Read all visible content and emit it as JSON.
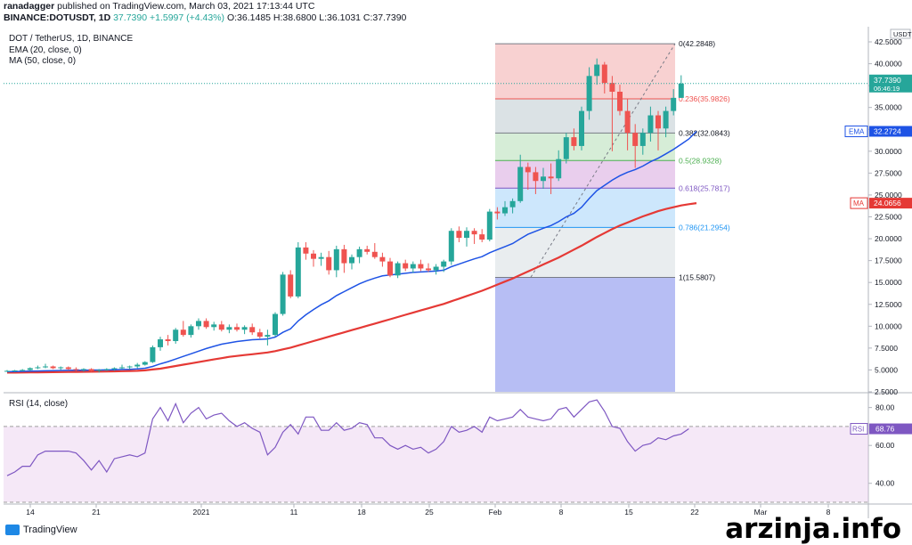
{
  "header": {
    "user": "ranadagger",
    "published": " published on TradingView.com, March 03, 2021 17:13:44 UTC",
    "symbol": "BINANCE:DOTUSDT, 1D",
    "price": "37.7390",
    "change": "+1.5997 (+4.43%)",
    "ohlc": "O:36.1485 H:38.6800 L:36.1031 C:37.7390"
  },
  "legend": {
    "pair": "DOT / TetherUS, 1D, BINANCE",
    "ema": "EMA (20, close, 0)",
    "ma": "MA (50, close, 0)",
    "rsi": "RSI (14, close)"
  },
  "branding": {
    "platform": "TradingView",
    "watermark": "arzinja.info"
  },
  "colors": {
    "up": "#26a69a",
    "down": "#ef5350",
    "ema": "#1e53e5",
    "ma": "#e53935",
    "rsi": "#7e57c2",
    "bg": "#ffffff"
  },
  "chart_data": [
    {
      "type": "candlestick",
      "title": "DOT / TetherUS, 1D, BINANCE",
      "currency": "USDT",
      "y_ticks": [
        "42.5000",
        "40.0000",
        "37.5000",
        "35.0000",
        "32.5000",
        "30.0000",
        "27.5000",
        "25.0000",
        "22.5000",
        "20.0000",
        "17.5000",
        "15.0000",
        "12.5000",
        "10.0000",
        "7.5000",
        "5.0000",
        "2.5000"
      ],
      "ylim": [
        2.5,
        42.5
      ],
      "x_ticks": [
        "14",
        "21",
        "2021",
        "11",
        "18",
        "25",
        "Feb",
        "8",
        "15",
        "22",
        "Mar",
        "8"
      ],
      "last_price_label": "37.7390",
      "countdown_label": "06:46:19",
      "ema_label": "EMA",
      "ema_value": "32.2724",
      "ma_label": "MA",
      "ma_value": "24.0656",
      "candles": [
        [
          4.9,
          5.0,
          4.8,
          4.9
        ],
        [
          4.9,
          5.0,
          4.8,
          4.95
        ],
        [
          4.95,
          5.1,
          4.85,
          5.0
        ],
        [
          5.0,
          5.3,
          4.9,
          5.2
        ],
        [
          5.2,
          5.5,
          5.1,
          5.3
        ],
        [
          5.3,
          5.7,
          5.2,
          5.4
        ],
        [
          5.4,
          5.5,
          5.1,
          5.2
        ],
        [
          5.2,
          5.4,
          5.0,
          5.3
        ],
        [
          5.3,
          5.4,
          5.0,
          5.1
        ],
        [
          5.1,
          5.3,
          4.9,
          5.0
        ],
        [
          5.0,
          5.2,
          4.8,
          5.1
        ],
        [
          5.1,
          5.2,
          4.8,
          4.9
        ],
        [
          4.9,
          5.1,
          4.7,
          5.0
        ],
        [
          5.0,
          5.2,
          4.9,
          5.1
        ],
        [
          5.1,
          5.3,
          4.9,
          5.2
        ],
        [
          5.2,
          5.6,
          5.1,
          5.3
        ],
        [
          5.3,
          5.5,
          5.1,
          5.4
        ],
        [
          5.4,
          5.8,
          5.2,
          5.6
        ],
        [
          5.6,
          6.0,
          5.5,
          5.9
        ],
        [
          5.9,
          7.8,
          5.8,
          7.6
        ],
        [
          7.6,
          8.8,
          7.2,
          8.5
        ],
        [
          8.5,
          9.0,
          7.8,
          8.3
        ],
        [
          8.3,
          9.8,
          8.0,
          9.6
        ],
        [
          9.6,
          10.6,
          8.8,
          9.0
        ],
        [
          9.0,
          10.2,
          8.7,
          10.0
        ],
        [
          10.0,
          10.9,
          9.6,
          10.6
        ],
        [
          10.6,
          10.9,
          9.7,
          9.9
        ],
        [
          9.9,
          10.5,
          9.5,
          10.2
        ],
        [
          10.2,
          10.6,
          9.4,
          9.6
        ],
        [
          9.6,
          10.2,
          9.2,
          9.9
        ],
        [
          9.9,
          10.3,
          9.4,
          9.6
        ],
        [
          9.6,
          10.1,
          9.1,
          9.9
        ],
        [
          9.9,
          10.3,
          9.0,
          9.3
        ],
        [
          9.3,
          9.7,
          8.6,
          8.8
        ],
        [
          8.8,
          9.6,
          7.8,
          9.0
        ],
        [
          9.0,
          11.6,
          8.8,
          11.4
        ],
        [
          11.4,
          16.2,
          11.2,
          15.9
        ],
        [
          15.9,
          16.4,
          13.2,
          13.4
        ],
        [
          13.4,
          19.6,
          13.2,
          19.0
        ],
        [
          19.0,
          19.6,
          17.6,
          18.3
        ],
        [
          18.3,
          18.7,
          16.8,
          17.7
        ],
        [
          17.7,
          18.4,
          16.9,
          17.9
        ],
        [
          17.9,
          18.6,
          15.9,
          16.4
        ],
        [
          16.4,
          19.2,
          15.6,
          18.8
        ],
        [
          18.8,
          19.3,
          16.1,
          17.2
        ],
        [
          17.2,
          18.2,
          16.5,
          17.9
        ],
        [
          17.9,
          19.1,
          17.2,
          18.8
        ],
        [
          18.8,
          19.2,
          18.2,
          18.5
        ],
        [
          18.5,
          19.5,
          17.7,
          17.9
        ],
        [
          17.9,
          18.4,
          16.8,
          17.4
        ],
        [
          17.4,
          17.8,
          15.6,
          15.8
        ],
        [
          15.8,
          17.4,
          15.5,
          17.2
        ],
        [
          17.2,
          17.6,
          16.3,
          16.6
        ],
        [
          16.6,
          17.4,
          16.1,
          17.1
        ],
        [
          17.1,
          17.6,
          16.3,
          16.6
        ],
        [
          16.6,
          17.2,
          16.2,
          16.4
        ],
        [
          16.4,
          17.1,
          15.9,
          16.8
        ],
        [
          16.8,
          17.6,
          16.2,
          17.4
        ],
        [
          17.4,
          21.2,
          17.0,
          20.9
        ],
        [
          20.9,
          21.4,
          19.6,
          20.1
        ],
        [
          20.1,
          21.3,
          19.1,
          20.9
        ],
        [
          20.9,
          21.2,
          19.4,
          20.5
        ],
        [
          20.5,
          21.1,
          19.6,
          19.9
        ],
        [
          19.9,
          23.4,
          19.7,
          23.1
        ],
        [
          23.1,
          23.6,
          22.2,
          22.9
        ],
        [
          22.9,
          24.3,
          22.6,
          23.6
        ],
        [
          23.6,
          24.6,
          22.9,
          24.3
        ],
        [
          24.3,
          29.6,
          24.1,
          28.2
        ],
        [
          28.2,
          28.7,
          25.6,
          27.6
        ],
        [
          27.6,
          28.2,
          25.1,
          26.6
        ],
        [
          26.6,
          28.1,
          25.7,
          27.1
        ],
        [
          27.1,
          28.6,
          25.1,
          26.9
        ],
        [
          26.9,
          30.1,
          26.6,
          29.1
        ],
        [
          29.1,
          32.1,
          28.6,
          31.6
        ],
        [
          31.6,
          32.6,
          30.1,
          30.6
        ],
        [
          30.6,
          35.1,
          30.1,
          34.6
        ],
        [
          34.6,
          39.6,
          33.6,
          38.6
        ],
        [
          38.6,
          40.6,
          37.6,
          39.9
        ],
        [
          39.9,
          40.2,
          36.6,
          37.8
        ],
        [
          37.8,
          38.6,
          30.0,
          36.8
        ],
        [
          36.8,
          37.6,
          34.1,
          34.6
        ],
        [
          34.6,
          36.0,
          30.1,
          32.1
        ],
        [
          32.1,
          33.1,
          28.1,
          30.6
        ],
        [
          30.6,
          32.6,
          29.6,
          32.1
        ],
        [
          32.1,
          35.1,
          31.1,
          34.1
        ],
        [
          34.1,
          34.6,
          30.1,
          32.6
        ],
        [
          32.6,
          35.1,
          31.6,
          34.6
        ],
        [
          34.6,
          37.1,
          34.1,
          36.1
        ],
        [
          36.1,
          38.68,
          36.1031,
          37.739
        ]
      ],
      "ema20": [
        4.8,
        4.82,
        4.84,
        4.86,
        4.88,
        4.9,
        4.92,
        4.94,
        4.95,
        4.96,
        4.97,
        4.98,
        4.99,
        5.0,
        5.02,
        5.05,
        5.08,
        5.12,
        5.2,
        5.4,
        5.7,
        5.95,
        6.25,
        6.55,
        6.85,
        7.15,
        7.45,
        7.7,
        7.95,
        8.1,
        8.25,
        8.35,
        8.45,
        8.5,
        8.55,
        8.75,
        9.3,
        9.7,
        10.6,
        11.3,
        11.9,
        12.45,
        12.9,
        13.5,
        13.95,
        14.4,
        14.85,
        15.2,
        15.5,
        15.75,
        15.85,
        15.95,
        16.05,
        16.15,
        16.2,
        16.25,
        16.3,
        16.4,
        16.8,
        17.1,
        17.4,
        17.7,
        17.95,
        18.4,
        18.75,
        19.1,
        19.45,
        20.0,
        20.5,
        20.85,
        21.2,
        21.5,
        21.95,
        22.5,
        22.9,
        23.6,
        24.6,
        25.5,
        26.1,
        26.7,
        27.2,
        27.6,
        27.9,
        28.3,
        28.8,
        29.2,
        29.7,
        30.2,
        30.8,
        31.4,
        32.27
      ],
      "ma50": [
        4.7,
        4.7,
        4.71,
        4.72,
        4.73,
        4.74,
        4.75,
        4.76,
        4.77,
        4.78,
        4.79,
        4.8,
        4.81,
        4.82,
        4.84,
        4.86,
        4.88,
        4.9,
        4.95,
        5.05,
        5.15,
        5.3,
        5.45,
        5.6,
        5.75,
        5.9,
        6.05,
        6.2,
        6.35,
        6.5,
        6.6,
        6.7,
        6.8,
        6.9,
        7.0,
        7.15,
        7.35,
        7.55,
        7.8,
        8.05,
        8.3,
        8.55,
        8.8,
        9.05,
        9.3,
        9.55,
        9.8,
        10.05,
        10.3,
        10.55,
        10.8,
        11.05,
        11.3,
        11.55,
        11.8,
        12.05,
        12.3,
        12.55,
        12.85,
        13.15,
        13.45,
        13.75,
        14.05,
        14.4,
        14.75,
        15.1,
        15.45,
        15.85,
        16.25,
        16.65,
        17.05,
        17.45,
        17.85,
        18.3,
        18.75,
        19.2,
        19.7,
        20.2,
        20.65,
        21.1,
        21.5,
        21.85,
        22.2,
        22.55,
        22.85,
        23.15,
        23.4,
        23.6,
        23.8,
        23.95,
        24.07
      ],
      "fibonacci": {
        "high": 42.2848,
        "low": 15.5807,
        "levels": [
          {
            "ratio": "0",
            "value": 42.2848,
            "label": "0(42.2848)"
          },
          {
            "ratio": "0.236",
            "value": 35.9826,
            "label": "0.236(35.9826)"
          },
          {
            "ratio": "0.382",
            "value": 32.0843,
            "label": "0.382(32.0843)"
          },
          {
            "ratio": "0.5",
            "value": 28.9328,
            "label": "0.5(28.9328)"
          },
          {
            "ratio": "0.618",
            "value": 25.7817,
            "label": "0.618(25.7817)"
          },
          {
            "ratio": "0.786",
            "value": 21.2954,
            "label": "0.786(21.2954)"
          },
          {
            "ratio": "1",
            "value": 15.5807,
            "label": "1(15.5807)"
          }
        ]
      }
    },
    {
      "type": "line",
      "title": "RSI (14, close)",
      "ylim": [
        30,
        85
      ],
      "y_ticks": [
        "80.00",
        "60.00",
        "40.00"
      ],
      "bands": [
        70,
        30
      ],
      "last_label": "RSI",
      "last_value": "68.76",
      "values": [
        44,
        46,
        49,
        49,
        55,
        57,
        57,
        57,
        57,
        56,
        52,
        47,
        52,
        46,
        53,
        54,
        55,
        54,
        56,
        74,
        80,
        73,
        82,
        72,
        77,
        80,
        74,
        76,
        77,
        73,
        70,
        72,
        69,
        67,
        55,
        59,
        67,
        71,
        66,
        75,
        75,
        68,
        68,
        72,
        68,
        69,
        72,
        71,
        64,
        64,
        60,
        58,
        60,
        58,
        59,
        56,
        58,
        62,
        70,
        67,
        68,
        70,
        67,
        75,
        73,
        74,
        75,
        79,
        75,
        74,
        73,
        74,
        79,
        80,
        75,
        79,
        83,
        84,
        78,
        70,
        69,
        62,
        57,
        60,
        61,
        64,
        63,
        65,
        66,
        68.76
      ]
    }
  ]
}
